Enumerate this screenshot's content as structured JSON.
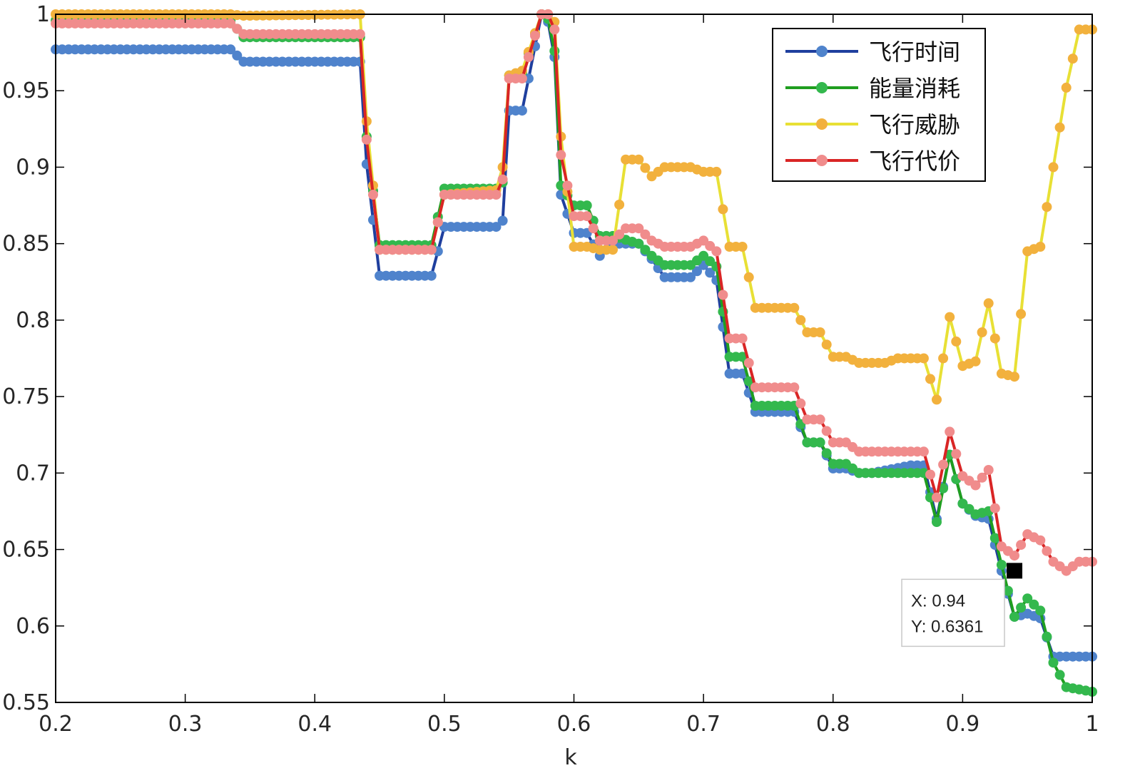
{
  "chart_data": {
    "type": "line",
    "xlabel": "k",
    "ylabel": "",
    "xlim": [
      0.2,
      1.0
    ],
    "ylim": [
      0.55,
      1.0
    ],
    "xticks": [
      "0.2",
      "0.3",
      "0.4",
      "0.5",
      "0.6",
      "0.7",
      "0.8",
      "0.9",
      "1"
    ],
    "yticks": [
      "0.55",
      "0.6",
      "0.65",
      "0.7",
      "0.75",
      "0.8",
      "0.85",
      "0.9",
      "0.95",
      "1"
    ],
    "grid": false,
    "legend_position": "top-right",
    "series": [
      {
        "name": "飞行时间",
        "color": "#1f3f9e",
        "marker_color": "#4f83cc",
        "x": [
          0.2,
          0.335,
          0.345,
          0.435,
          0.44,
          0.45,
          0.49,
          0.5,
          0.54,
          0.545,
          0.55,
          0.56,
          0.575,
          0.58,
          0.585,
          0.59,
          0.6,
          0.61,
          0.62,
          0.63,
          0.65,
          0.66,
          0.67,
          0.69,
          0.7,
          0.71,
          0.72,
          0.73,
          0.74,
          0.77,
          0.78,
          0.79,
          0.8,
          0.81,
          0.82,
          0.83,
          0.86,
          0.87,
          0.88,
          0.89,
          0.9,
          0.91,
          0.92,
          0.93,
          0.94,
          0.95,
          0.96,
          0.97,
          0.98,
          1.0
        ],
        "y": [
          0.977,
          0.977,
          0.969,
          0.969,
          0.902,
          0.829,
          0.829,
          0.861,
          0.861,
          0.865,
          0.937,
          0.937,
          1.0,
          0.995,
          0.972,
          0.882,
          0.857,
          0.857,
          0.842,
          0.85,
          0.85,
          0.84,
          0.828,
          0.828,
          0.836,
          0.826,
          0.765,
          0.765,
          0.74,
          0.74,
          0.72,
          0.72,
          0.703,
          0.703,
          0.7,
          0.7,
          0.705,
          0.705,
          0.67,
          0.712,
          0.68,
          0.672,
          0.67,
          0.636,
          0.606,
          0.608,
          0.605,
          0.58,
          0.58,
          0.58
        ]
      },
      {
        "name": "能量消耗",
        "color": "#1f9e1f",
        "marker_color": "#33b84d",
        "x": [
          0.2,
          0.335,
          0.345,
          0.435,
          0.44,
          0.45,
          0.49,
          0.5,
          0.54,
          0.545,
          0.55,
          0.56,
          0.575,
          0.58,
          0.585,
          0.59,
          0.6,
          0.61,
          0.62,
          0.63,
          0.65,
          0.66,
          0.67,
          0.69,
          0.7,
          0.71,
          0.72,
          0.73,
          0.74,
          0.77,
          0.78,
          0.79,
          0.8,
          0.81,
          0.82,
          0.83,
          0.86,
          0.87,
          0.88,
          0.89,
          0.9,
          0.91,
          0.92,
          0.93,
          0.94,
          0.95,
          0.96,
          0.97,
          0.98,
          1.0
        ],
        "y": [
          0.996,
          0.996,
          0.985,
          0.985,
          0.92,
          0.849,
          0.849,
          0.886,
          0.886,
          0.89,
          0.96,
          0.962,
          1.0,
          0.997,
          0.976,
          0.888,
          0.875,
          0.875,
          0.855,
          0.855,
          0.85,
          0.842,
          0.836,
          0.836,
          0.842,
          0.835,
          0.776,
          0.776,
          0.744,
          0.744,
          0.72,
          0.72,
          0.706,
          0.706,
          0.7,
          0.7,
          0.7,
          0.7,
          0.668,
          0.712,
          0.68,
          0.673,
          0.675,
          0.64,
          0.606,
          0.618,
          0.61,
          0.576,
          0.56,
          0.557
        ]
      },
      {
        "name": "飞行威胁",
        "color": "#e8e035",
        "marker_color": "#f2b13d",
        "x": [
          0.2,
          0.335,
          0.345,
          0.435,
          0.44,
          0.45,
          0.49,
          0.5,
          0.54,
          0.545,
          0.55,
          0.56,
          0.575,
          0.58,
          0.585,
          0.59,
          0.6,
          0.61,
          0.62,
          0.63,
          0.64,
          0.65,
          0.66,
          0.67,
          0.69,
          0.7,
          0.71,
          0.72,
          0.73,
          0.74,
          0.77,
          0.78,
          0.79,
          0.8,
          0.81,
          0.82,
          0.84,
          0.85,
          0.87,
          0.88,
          0.89,
          0.9,
          0.91,
          0.92,
          0.93,
          0.94,
          0.95,
          0.96,
          0.97,
          0.98,
          0.99,
          1.0
        ],
        "y": [
          1.0,
          1.0,
          0.999,
          1.0,
          0.93,
          0.846,
          0.846,
          0.882,
          0.885,
          0.9,
          0.96,
          0.963,
          1.0,
          1.0,
          0.995,
          0.92,
          0.848,
          0.848,
          0.846,
          0.846,
          0.905,
          0.905,
          0.894,
          0.9,
          0.9,
          0.897,
          0.897,
          0.848,
          0.848,
          0.808,
          0.808,
          0.792,
          0.792,
          0.776,
          0.776,
          0.772,
          0.772,
          0.775,
          0.775,
          0.748,
          0.802,
          0.77,
          0.773,
          0.811,
          0.765,
          0.763,
          0.845,
          0.848,
          0.9,
          0.952,
          0.99,
          0.99
        ]
      },
      {
        "name": "飞行代价",
        "color": "#d92525",
        "marker_color": "#f08c8c",
        "x": [
          0.2,
          0.335,
          0.345,
          0.435,
          0.44,
          0.45,
          0.49,
          0.5,
          0.54,
          0.545,
          0.55,
          0.56,
          0.575,
          0.58,
          0.585,
          0.59,
          0.6,
          0.61,
          0.62,
          0.63,
          0.64,
          0.65,
          0.66,
          0.67,
          0.69,
          0.7,
          0.71,
          0.72,
          0.73,
          0.74,
          0.77,
          0.78,
          0.79,
          0.8,
          0.81,
          0.82,
          0.83,
          0.87,
          0.88,
          0.89,
          0.9,
          0.91,
          0.92,
          0.93,
          0.94,
          0.95,
          0.96,
          0.97,
          0.98,
          0.99,
          1.0
        ],
        "y": [
          0.994,
          0.994,
          0.987,
          0.987,
          0.918,
          0.846,
          0.846,
          0.882,
          0.882,
          0.892,
          0.958,
          0.958,
          1.0,
          1.0,
          0.99,
          0.908,
          0.868,
          0.868,
          0.852,
          0.852,
          0.86,
          0.86,
          0.852,
          0.848,
          0.848,
          0.852,
          0.845,
          0.788,
          0.788,
          0.756,
          0.756,
          0.735,
          0.735,
          0.72,
          0.72,
          0.714,
          0.714,
          0.714,
          0.684,
          0.727,
          0.698,
          0.692,
          0.702,
          0.652,
          0.646,
          0.66,
          0.656,
          0.642,
          0.636,
          0.642,
          0.642
        ]
      }
    ],
    "annotation": {
      "x": 0.94,
      "y": 0.6361,
      "label_x": "X: 0.94",
      "label_y": "Y: 0.6361"
    }
  }
}
